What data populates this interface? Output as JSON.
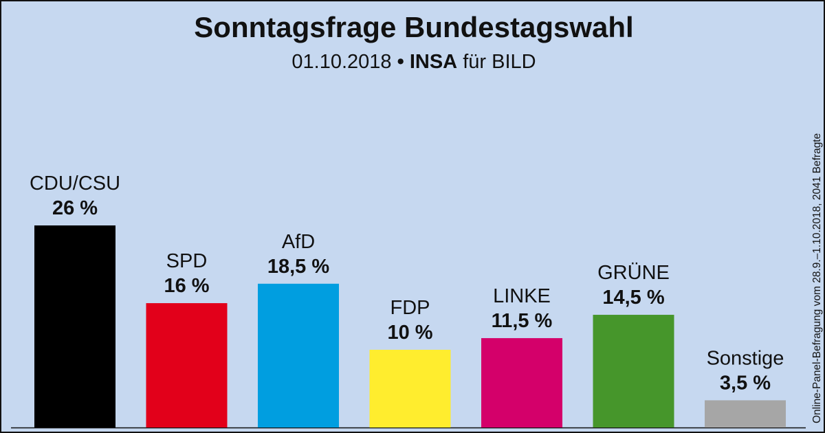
{
  "title": "Sonntagsfrage Bundestagswahl",
  "subtitle": {
    "date": "01.10.2018",
    "separator": "•",
    "institute": "INSA",
    "client": "für BILD"
  },
  "side_note": "Online-Panel-Befragung vom 28.9.–1.10.2018, 2041 Befragte",
  "chart_data": {
    "type": "bar",
    "title": "Sonntagsfrage Bundestagswahl",
    "categories": [
      "CDU/CSU",
      "SPD",
      "AfD",
      "FDP",
      "LINKE",
      "GRÜNE",
      "Sonstige"
    ],
    "values": [
      26,
      16,
      18.5,
      10,
      11.5,
      14.5,
      3.5
    ],
    "value_labels": [
      "26 %",
      "16 %",
      "18,5 %",
      "10 %",
      "11,5 %",
      "14,5 %",
      "3,5 %"
    ],
    "colors": [
      "#000000",
      "#e2001a",
      "#009ee0",
      "#ffed2e",
      "#d4006a",
      "#46962b",
      "#a6a6a6"
    ],
    "ylim": [
      0,
      26
    ],
    "grid": false,
    "legend": "none"
  }
}
